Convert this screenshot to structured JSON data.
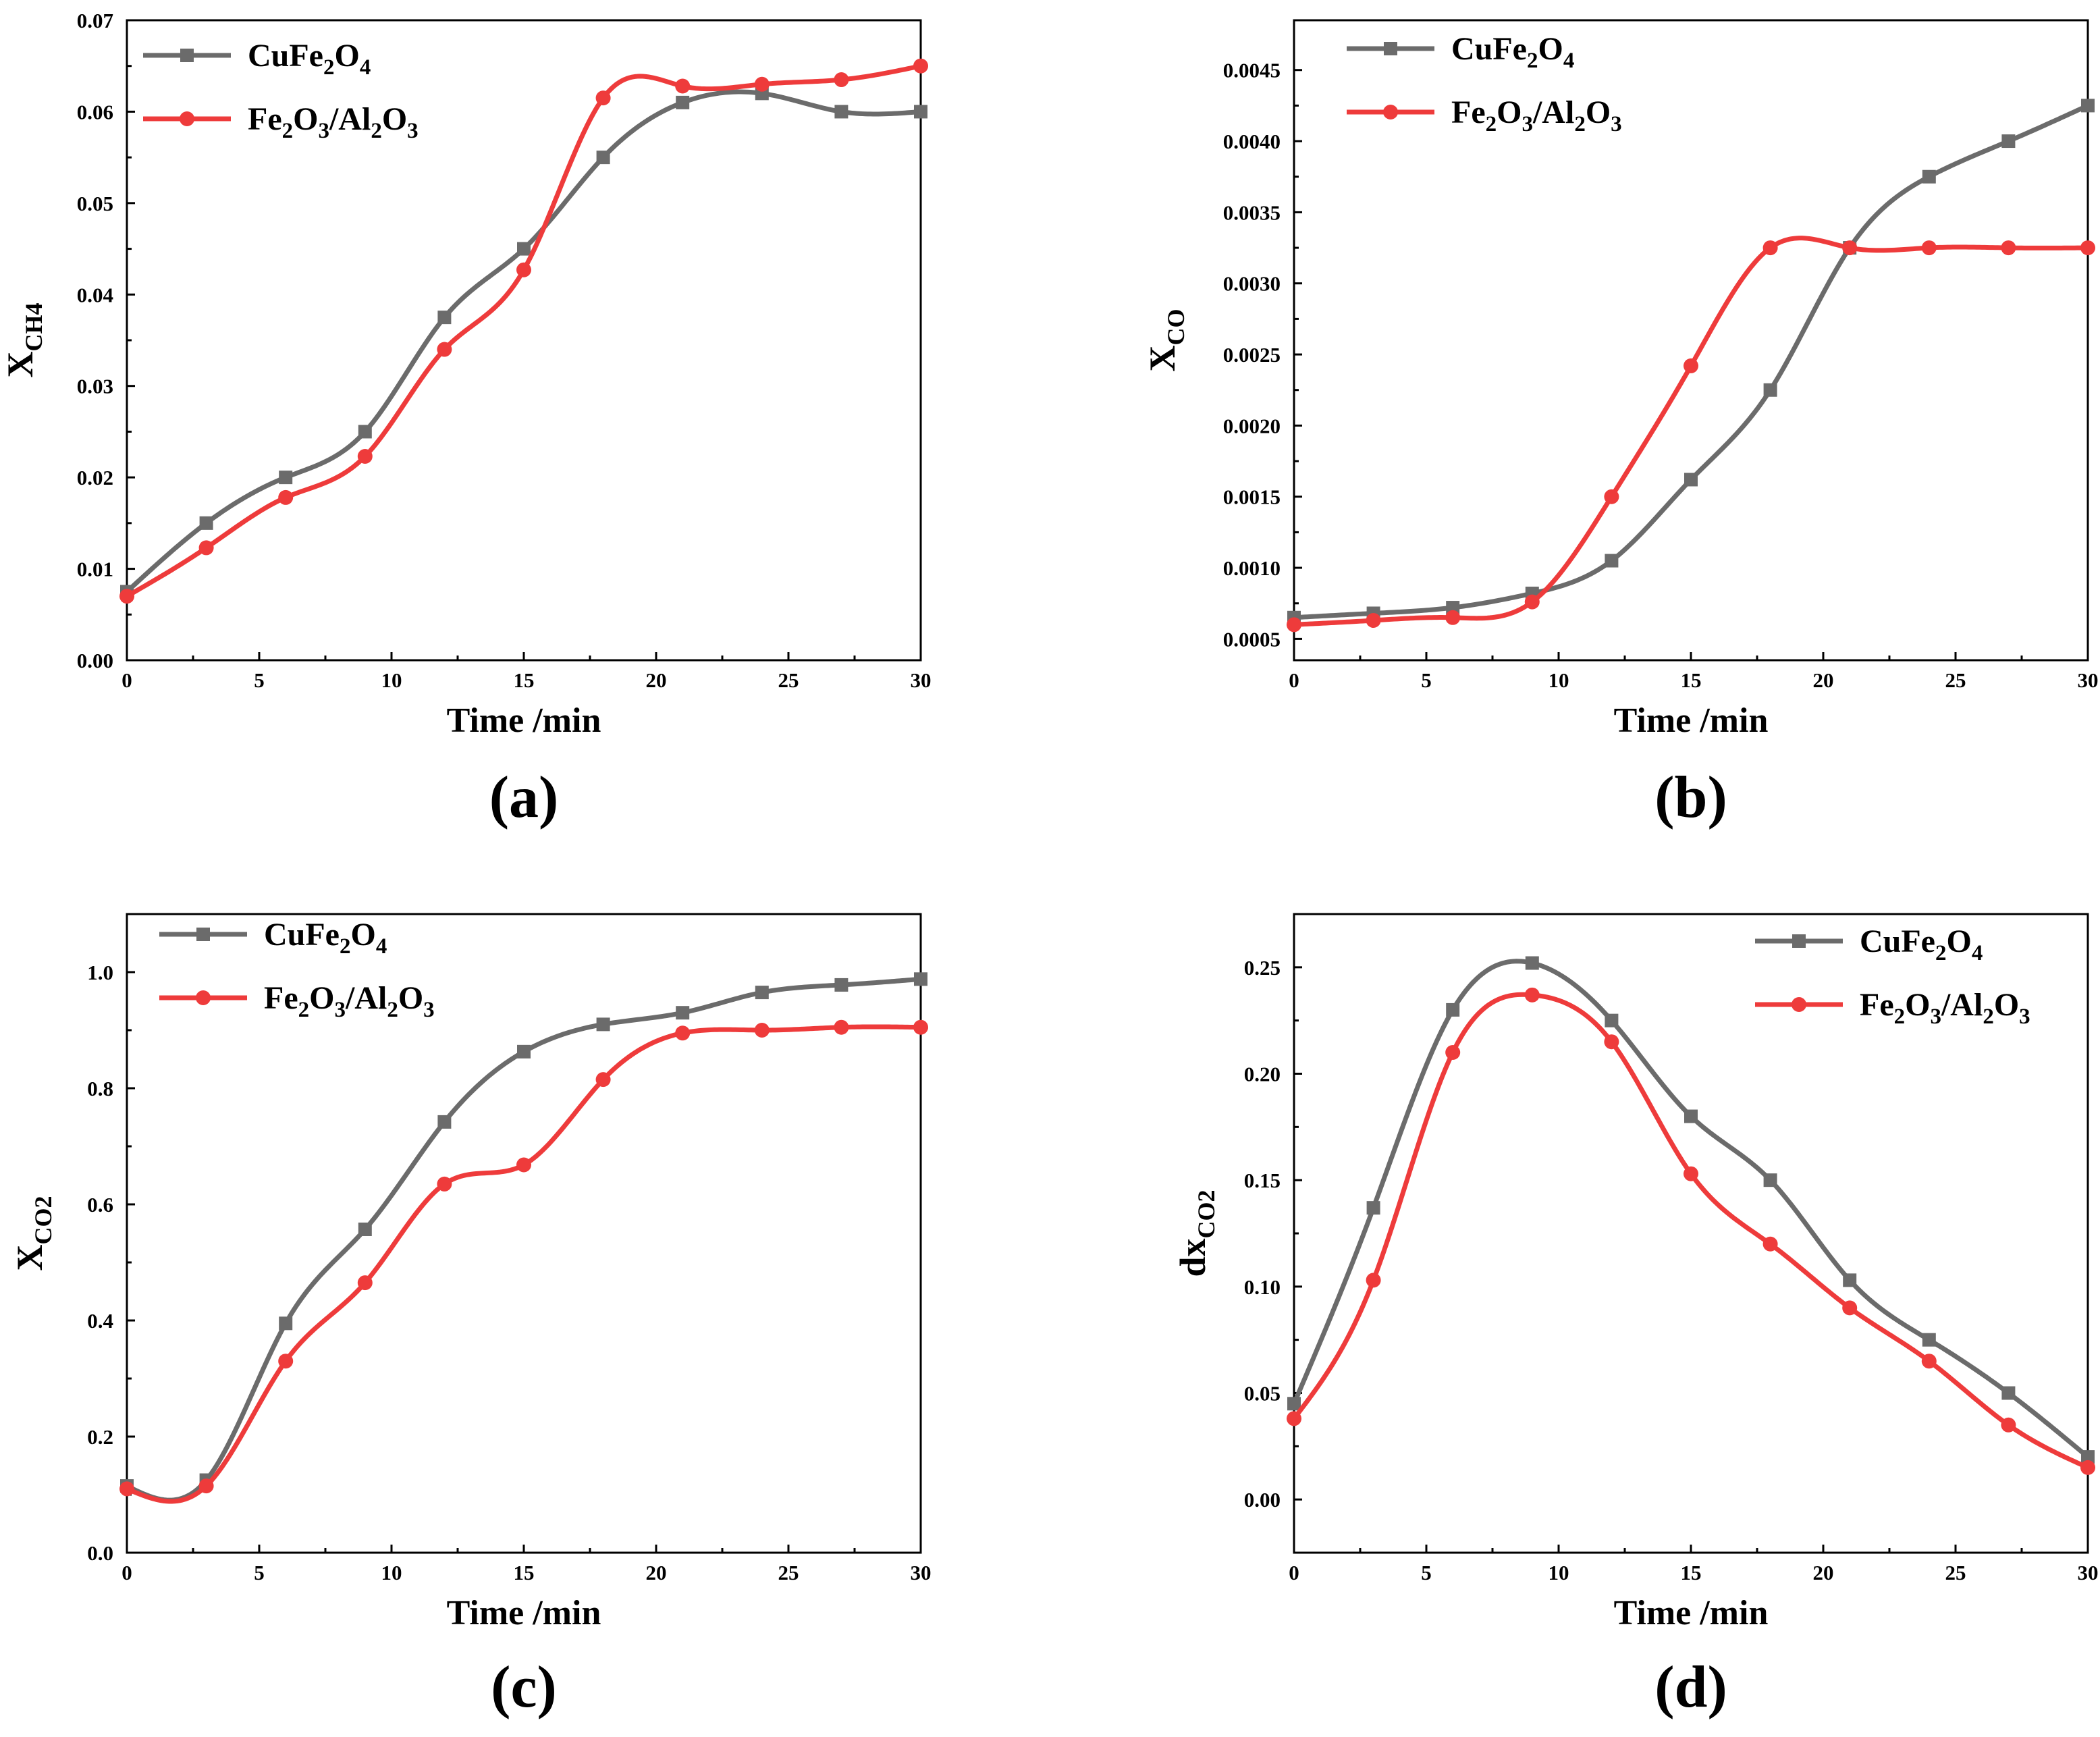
{
  "chart_data": [
    {
      "panel": "a",
      "type": "line",
      "panel_label": "(a)",
      "xlabel": "Time /min",
      "ylabel": {
        "main": "X",
        "sub": "CH4"
      },
      "xlim": [
        0,
        30
      ],
      "ylim": [
        0,
        0.07
      ],
      "xticks": [
        0,
        5,
        10,
        15,
        20,
        25,
        30
      ],
      "yticks": [
        0.0,
        0.01,
        0.02,
        0.03,
        0.04,
        0.05,
        0.06,
        0.07
      ],
      "ytick_labels": [
        "0.00",
        "0.01",
        "0.02",
        "0.03",
        "0.04",
        "0.05",
        "0.06",
        "0.07"
      ],
      "legend_position": "top-left",
      "series": [
        {
          "name": "CuFe2O4",
          "label_parts": [
            [
              "CuFe",
              ""
            ],
            [
              "2",
              "sub"
            ],
            [
              "O",
              ""
            ],
            [
              "4",
              "sub"
            ]
          ],
          "color": "#6b6b6b",
          "marker": "square",
          "x": [
            0,
            3,
            6,
            9,
            12,
            15,
            18,
            21,
            24,
            27,
            30
          ],
          "y": [
            0.0075,
            0.015,
            0.02,
            0.025,
            0.0375,
            0.045,
            0.055,
            0.061,
            0.062,
            0.06,
            0.06
          ]
        },
        {
          "name": "Fe2O3/Al2O3",
          "label_parts": [
            [
              "Fe",
              ""
            ],
            [
              "2",
              "sub"
            ],
            [
              "O",
              ""
            ],
            [
              "3",
              "sub"
            ],
            [
              "/Al",
              ""
            ],
            [
              "2",
              "sub"
            ],
            [
              "O",
              ""
            ],
            [
              "3",
              "sub"
            ]
          ],
          "color": "#ee3b3b",
          "marker": "circle",
          "x": [
            0,
            3,
            6,
            9,
            12,
            15,
            18,
            21,
            24,
            27,
            30
          ],
          "y": [
            0.007,
            0.0123,
            0.0178,
            0.0223,
            0.034,
            0.0427,
            0.0615,
            0.0628,
            0.063,
            0.0635,
            0.065
          ]
        }
      ]
    },
    {
      "panel": "b",
      "type": "line",
      "panel_label": "(b)",
      "xlabel": "Time /min",
      "ylabel": {
        "main": "X",
        "sub": "CO"
      },
      "xlim": [
        0,
        30
      ],
      "ylim": [
        0.00035,
        0.00485
      ],
      "xticks": [
        0,
        5,
        10,
        15,
        20,
        25,
        30
      ],
      "yticks": [
        0.0005,
        0.001,
        0.0015,
        0.002,
        0.0025,
        0.003,
        0.0035,
        0.004,
        0.0045
      ],
      "ytick_labels": [
        "0.0005",
        "0.0010",
        "0.0015",
        "0.0020",
        "0.0025",
        "0.0030",
        "0.0035",
        "0.0040",
        "0.0045"
      ],
      "legend_position": "top-left",
      "series": [
        {
          "name": "CuFe2O4",
          "label_parts": [
            [
              "CuFe",
              ""
            ],
            [
              "2",
              "sub"
            ],
            [
              "O",
              ""
            ],
            [
              "4",
              "sub"
            ]
          ],
          "color": "#6b6b6b",
          "marker": "square",
          "x": [
            0,
            3,
            6,
            9,
            12,
            15,
            18,
            21,
            24,
            27,
            30
          ],
          "y": [
            0.00065,
            0.00068,
            0.00072,
            0.00082,
            0.00105,
            0.00162,
            0.00225,
            0.00325,
            0.00375,
            0.004,
            0.00425
          ]
        },
        {
          "name": "Fe2O3/Al2O3",
          "label_parts": [
            [
              "Fe",
              ""
            ],
            [
              "2",
              "sub"
            ],
            [
              "O",
              ""
            ],
            [
              "3",
              "sub"
            ],
            [
              "/Al",
              ""
            ],
            [
              "2",
              "sub"
            ],
            [
              "O",
              ""
            ],
            [
              "3",
              "sub"
            ]
          ],
          "color": "#ee3b3b",
          "marker": "circle",
          "x": [
            0,
            3,
            6,
            9,
            12,
            15,
            18,
            21,
            24,
            27,
            30
          ],
          "y": [
            0.0006,
            0.00063,
            0.00065,
            0.00076,
            0.0015,
            0.00242,
            0.00325,
            0.00325,
            0.00325,
            0.00325,
            0.00325
          ]
        }
      ]
    },
    {
      "panel": "c",
      "type": "line",
      "panel_label": "(c)",
      "xlabel": "Time /min",
      "ylabel": {
        "main": "X",
        "sub": "CO2"
      },
      "xlim": [
        0,
        30
      ],
      "ylim": [
        0,
        1.1
      ],
      "xticks": [
        0,
        5,
        10,
        15,
        20,
        25,
        30
      ],
      "yticks": [
        0.0,
        0.2,
        0.4,
        0.6,
        0.8,
        1.0
      ],
      "ytick_labels": [
        "0.0",
        "0.2",
        "0.4",
        "0.6",
        "0.8",
        "1.0"
      ],
      "legend_position": "top-left",
      "series": [
        {
          "name": "CuFe2O4",
          "label_parts": [
            [
              "CuFe",
              ""
            ],
            [
              "2",
              "sub"
            ],
            [
              "O",
              ""
            ],
            [
              "4",
              "sub"
            ]
          ],
          "color": "#6b6b6b",
          "marker": "square",
          "x": [
            0,
            3,
            6,
            9,
            12,
            15,
            18,
            21,
            24,
            27,
            30
          ],
          "y": [
            0.115,
            0.125,
            0.395,
            0.557,
            0.742,
            0.863,
            0.91,
            0.93,
            0.965,
            0.978,
            0.988
          ]
        },
        {
          "name": "Fe2O3/Al2O3",
          "label_parts": [
            [
              "Fe",
              ""
            ],
            [
              "2",
              "sub"
            ],
            [
              "O",
              ""
            ],
            [
              "3",
              "sub"
            ],
            [
              "/Al",
              ""
            ],
            [
              "2",
              "sub"
            ],
            [
              "O",
              ""
            ],
            [
              "3",
              "sub"
            ]
          ],
          "color": "#ee3b3b",
          "marker": "circle",
          "x": [
            0,
            3,
            6,
            9,
            12,
            15,
            18,
            21,
            24,
            27,
            30
          ],
          "y": [
            0.11,
            0.115,
            0.33,
            0.465,
            0.635,
            0.668,
            0.815,
            0.895,
            0.9,
            0.905,
            0.905
          ]
        }
      ]
    },
    {
      "panel": "d",
      "type": "line",
      "panel_label": "(d)",
      "xlabel": "Time /min",
      "ylabel": {
        "main": "dx",
        "sub": "CO2"
      },
      "xlim": [
        0,
        30
      ],
      "ylim": [
        -0.025,
        0.275
      ],
      "xticks": [
        0,
        5,
        10,
        15,
        20,
        25,
        30
      ],
      "yticks": [
        0.0,
        0.05,
        0.1,
        0.15,
        0.2,
        0.25
      ],
      "ytick_labels": [
        "0.00",
        "0.05",
        "0.10",
        "0.15",
        "0.20",
        "0.25"
      ],
      "legend_position": "top-right",
      "series": [
        {
          "name": "CuFe2O4",
          "label_parts": [
            [
              "CuFe",
              ""
            ],
            [
              "2",
              "sub"
            ],
            [
              "O",
              ""
            ],
            [
              "4",
              "sub"
            ]
          ],
          "color": "#6b6b6b",
          "marker": "square",
          "x": [
            0,
            3,
            6,
            9,
            12,
            15,
            18,
            21,
            24,
            27,
            30
          ],
          "y": [
            0.045,
            0.137,
            0.23,
            0.252,
            0.225,
            0.18,
            0.15,
            0.103,
            0.075,
            0.05,
            0.02
          ]
        },
        {
          "name": "Fe2O3/Al2O3",
          "label_parts": [
            [
              "Fe",
              ""
            ],
            [
              "2",
              "sub"
            ],
            [
              "O",
              ""
            ],
            [
              "3",
              "sub"
            ],
            [
              "/Al",
              ""
            ],
            [
              "2",
              "sub"
            ],
            [
              "O",
              ""
            ],
            [
              "3",
              "sub"
            ]
          ],
          "color": "#ee3b3b",
          "marker": "circle",
          "x": [
            0,
            3,
            6,
            9,
            12,
            15,
            18,
            21,
            24,
            27,
            30
          ],
          "y": [
            0.038,
            0.103,
            0.21,
            0.237,
            0.215,
            0.153,
            0.12,
            0.09,
            0.065,
            0.035,
            0.015
          ]
        }
      ]
    }
  ]
}
